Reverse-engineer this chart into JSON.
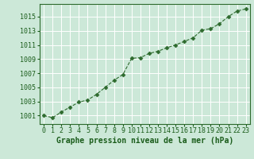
{
  "x": [
    0,
    1,
    2,
    3,
    4,
    5,
    6,
    7,
    8,
    9,
    10,
    11,
    12,
    13,
    14,
    15,
    16,
    17,
    18,
    19,
    20,
    21,
    22,
    23
  ],
  "y": [
    1001.0,
    1000.7,
    1001.5,
    1002.2,
    1002.9,
    1003.2,
    1004.0,
    1005.0,
    1006.0,
    1006.8,
    1009.1,
    1009.2,
    1009.8,
    1010.1,
    1010.6,
    1011.0,
    1011.5,
    1012.0,
    1013.1,
    1013.3,
    1014.0,
    1015.0,
    1015.8,
    1016.1
  ],
  "line_color": "#2d6a2d",
  "marker": "D",
  "marker_size": 2.5,
  "background_color": "#cce8d8",
  "grid_color": "#ffffff",
  "xlabel": "Graphe pression niveau de la mer (hPa)",
  "xlabel_color": "#1a5c1a",
  "xlabel_fontsize": 7,
  "tick_color": "#1a5c1a",
  "tick_fontsize": 6,
  "yticks": [
    1001,
    1003,
    1005,
    1007,
    1009,
    1011,
    1013,
    1015
  ],
  "ylim": [
    999.8,
    1016.8
  ],
  "xlim": [
    -0.5,
    23.5
  ]
}
